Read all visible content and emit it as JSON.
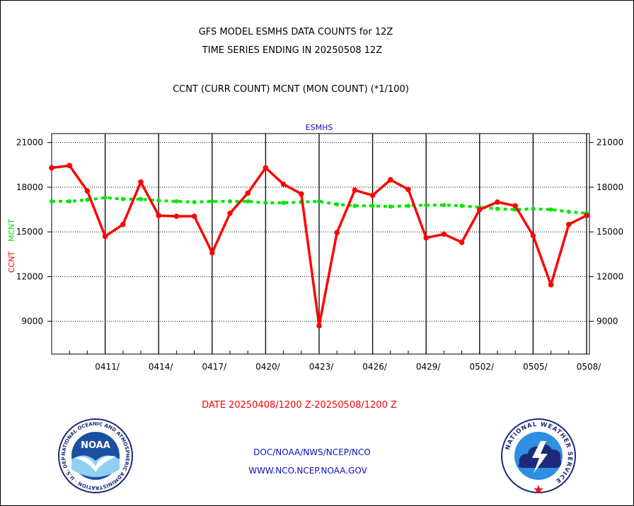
{
  "header": {
    "title_line1": "GFS MODEL ESMHS DATA COUNTS for 12Z",
    "title_line2": "TIME SERIES ENDING IN 20250508 12Z",
    "legend_line": "CCNT (CURR COUNT) MCNT (MON COUNT) (*1/100)"
  },
  "footer": {
    "date_range": "DATE 20250408/1200 Z-20250508/1200 Z",
    "agency_path": "DOC/NOAA/NWS/NCEP/NCO",
    "website": "WWW.NCO.NCEP.NOAA.GOV"
  },
  "logos": {
    "noaa_text": "NOAA",
    "noaa_ring": "NATIONAL OCEANIC AND ATMOSPHERIC ADMINISTRATION · U.S. DEPARTMENT OF COMMERCE",
    "nws_ring": "NATIONAL WEATHER SERVICE"
  },
  "chart_data": {
    "type": "line",
    "title": "ESMHS",
    "ylabel_series1": "CCNT",
    "ylabel_series2": "MCNT",
    "ylim": [
      6800,
      21600
    ],
    "yticks": [
      9000,
      12000,
      15000,
      18000,
      21000
    ],
    "x_dates": [
      "0408",
      "0409",
      "0410",
      "0411",
      "0412",
      "0413",
      "0414",
      "0415",
      "0416",
      "0417",
      "0418",
      "0419",
      "0420",
      "0421",
      "0422",
      "0423",
      "0424",
      "0425",
      "0426",
      "0427",
      "0428",
      "0429",
      "0430",
      "0501",
      "0502",
      "0503",
      "0504",
      "0505",
      "0506",
      "0507",
      "0508"
    ],
    "xtick_labels": [
      "0411/",
      "0414/",
      "0417/",
      "0420/",
      "0423/",
      "0426/",
      "0429/",
      "0502/",
      "0505/",
      "0508/"
    ],
    "grid": true,
    "series": [
      {
        "name": "CCNT",
        "color": "#ff0000",
        "values": [
          19300,
          19450,
          17750,
          14700,
          15500,
          18350,
          16100,
          16050,
          16050,
          13600,
          16250,
          17600,
          19300,
          18200,
          17550,
          8700,
          14950,
          17800,
          17450,
          18500,
          17850,
          14600,
          14850,
          14300,
          16500,
          17000,
          16750,
          14750,
          11450,
          15500,
          16100
        ]
      },
      {
        "name": "MCNT",
        "color": "#00e600",
        "values": [
          17050,
          17050,
          17150,
          17300,
          17200,
          17200,
          17100,
          17050,
          17000,
          17050,
          17050,
          17050,
          16950,
          16950,
          17000,
          17050,
          16850,
          16750,
          16750,
          16700,
          16750,
          16800,
          16800,
          16750,
          16650,
          16550,
          16500,
          16550,
          16500,
          16350,
          16250
        ]
      }
    ]
  }
}
